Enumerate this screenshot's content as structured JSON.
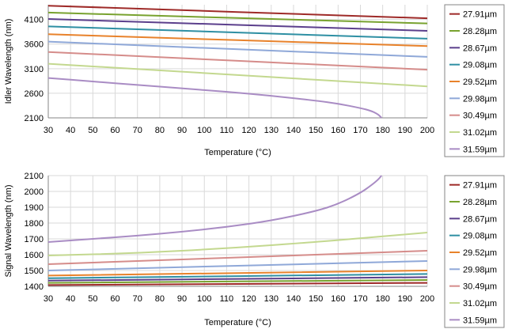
{
  "chart_data": [
    {
      "type": "line",
      "title": "",
      "xlabel": "Temperature (°C)",
      "ylabel": "Idler Wavelength (nm)",
      "xlim": [
        30,
        200
      ],
      "ylim": [
        2100,
        4400
      ],
      "xticks": [
        "30",
        "40",
        "50",
        "60",
        "70",
        "80",
        "90",
        "100",
        "110",
        "120",
        "130",
        "140",
        "150",
        "160",
        "170",
        "180",
        "190",
        "200"
      ],
      "yticks": [
        "2100",
        "2600",
        "3100",
        "3600",
        "4100"
      ],
      "ytick_values": [
        2100,
        2600,
        3100,
        3600,
        4100
      ],
      "grid": true,
      "legend_position": "right",
      "series": [
        {
          "name": "27.91µm",
          "color": "#9e2a28",
          "x": [
            30,
            200
          ],
          "y": [
            4380,
            4125
          ]
        },
        {
          "name": "28.28µm",
          "color": "#78a22f",
          "x": [
            30,
            200
          ],
          "y": [
            4240,
            4020
          ]
        },
        {
          "name": "28.67µm",
          "color": "#5b3f8c",
          "x": [
            30,
            200
          ],
          "y": [
            4110,
            3870
          ]
        },
        {
          "name": "29.08µm",
          "color": "#2e8fa3",
          "x": [
            30,
            200
          ],
          "y": [
            3960,
            3710
          ]
        },
        {
          "name": "29.52µm",
          "color": "#e8822b",
          "x": [
            30,
            200
          ],
          "y": [
            3800,
            3560
          ]
        },
        {
          "name": "29.98µm",
          "color": "#8fa8d8",
          "x": [
            30,
            200
          ],
          "y": [
            3650,
            3340
          ]
        },
        {
          "name": "30.49µm",
          "color": "#d58c8a",
          "x": [
            30,
            200
          ],
          "y": [
            3440,
            3080
          ]
        },
        {
          "name": "31.02µm",
          "color": "#c3d88f",
          "x": [
            30,
            200
          ],
          "y": [
            3200,
            2740
          ]
        },
        {
          "name": "31.59µm",
          "color": "#a98cc4",
          "x": [
            30,
            50,
            70,
            90,
            110,
            130,
            150,
            160,
            170,
            175,
            178,
            179.5
          ],
          "y": [
            2910,
            2840,
            2770,
            2700,
            2630,
            2550,
            2450,
            2390,
            2300,
            2240,
            2170,
            2100
          ]
        }
      ]
    },
    {
      "type": "line",
      "title": "",
      "xlabel": "Temperature (°C)",
      "ylabel": "Signal Wavelength (nm)",
      "xlim": [
        30,
        200
      ],
      "ylim": [
        1400,
        2100
      ],
      "xticks": [
        "30",
        "40",
        "50",
        "60",
        "70",
        "80",
        "90",
        "100",
        "110",
        "120",
        "130",
        "140",
        "150",
        "160",
        "170",
        "180",
        "190",
        "200"
      ],
      "yticks": [
        "1400",
        "1500",
        "1600",
        "1700",
        "1800",
        "1900",
        "2000",
        "2100"
      ],
      "ytick_values": [
        1400,
        1500,
        1600,
        1700,
        1800,
        1900,
        2000,
        2100
      ],
      "grid": true,
      "legend_position": "right",
      "series": [
        {
          "name": "27.91µm",
          "color": "#9e2a28",
          "x": [
            30,
            200
          ],
          "y": [
            1408,
            1422
          ]
        },
        {
          "name": "28.28µm",
          "color": "#78a22f",
          "x": [
            30,
            200
          ],
          "y": [
            1422,
            1440
          ]
        },
        {
          "name": "28.67µm",
          "color": "#5b3f8c",
          "x": [
            30,
            200
          ],
          "y": [
            1436,
            1458
          ]
        },
        {
          "name": "29.08µm",
          "color": "#2e8fa3",
          "x": [
            30,
            200
          ],
          "y": [
            1451,
            1478
          ]
        },
        {
          "name": "29.52µm",
          "color": "#e8822b",
          "x": [
            30,
            200
          ],
          "y": [
            1468,
            1500
          ]
        },
        {
          "name": "29.98µm",
          "color": "#8fa8d8",
          "x": [
            30,
            200
          ],
          "y": [
            1500,
            1560
          ]
        },
        {
          "name": "30.49µm",
          "color": "#d58c8a",
          "x": [
            30,
            200
          ],
          "y": [
            1540,
            1625
          ]
        },
        {
          "name": "31.02µm",
          "color": "#c3d88f",
          "x": [
            30,
            70,
            110,
            150,
            175,
            200
          ],
          "y": [
            1595,
            1610,
            1640,
            1680,
            1710,
            1740
          ]
        },
        {
          "name": "31.59µm",
          "color": "#a98cc4",
          "x": [
            30,
            50,
            70,
            90,
            110,
            130,
            150,
            160,
            170,
            175,
            178,
            179.5
          ],
          "y": [
            1680,
            1700,
            1720,
            1745,
            1775,
            1815,
            1875,
            1920,
            1990,
            2040,
            2075,
            2100
          ]
        }
      ]
    }
  ]
}
